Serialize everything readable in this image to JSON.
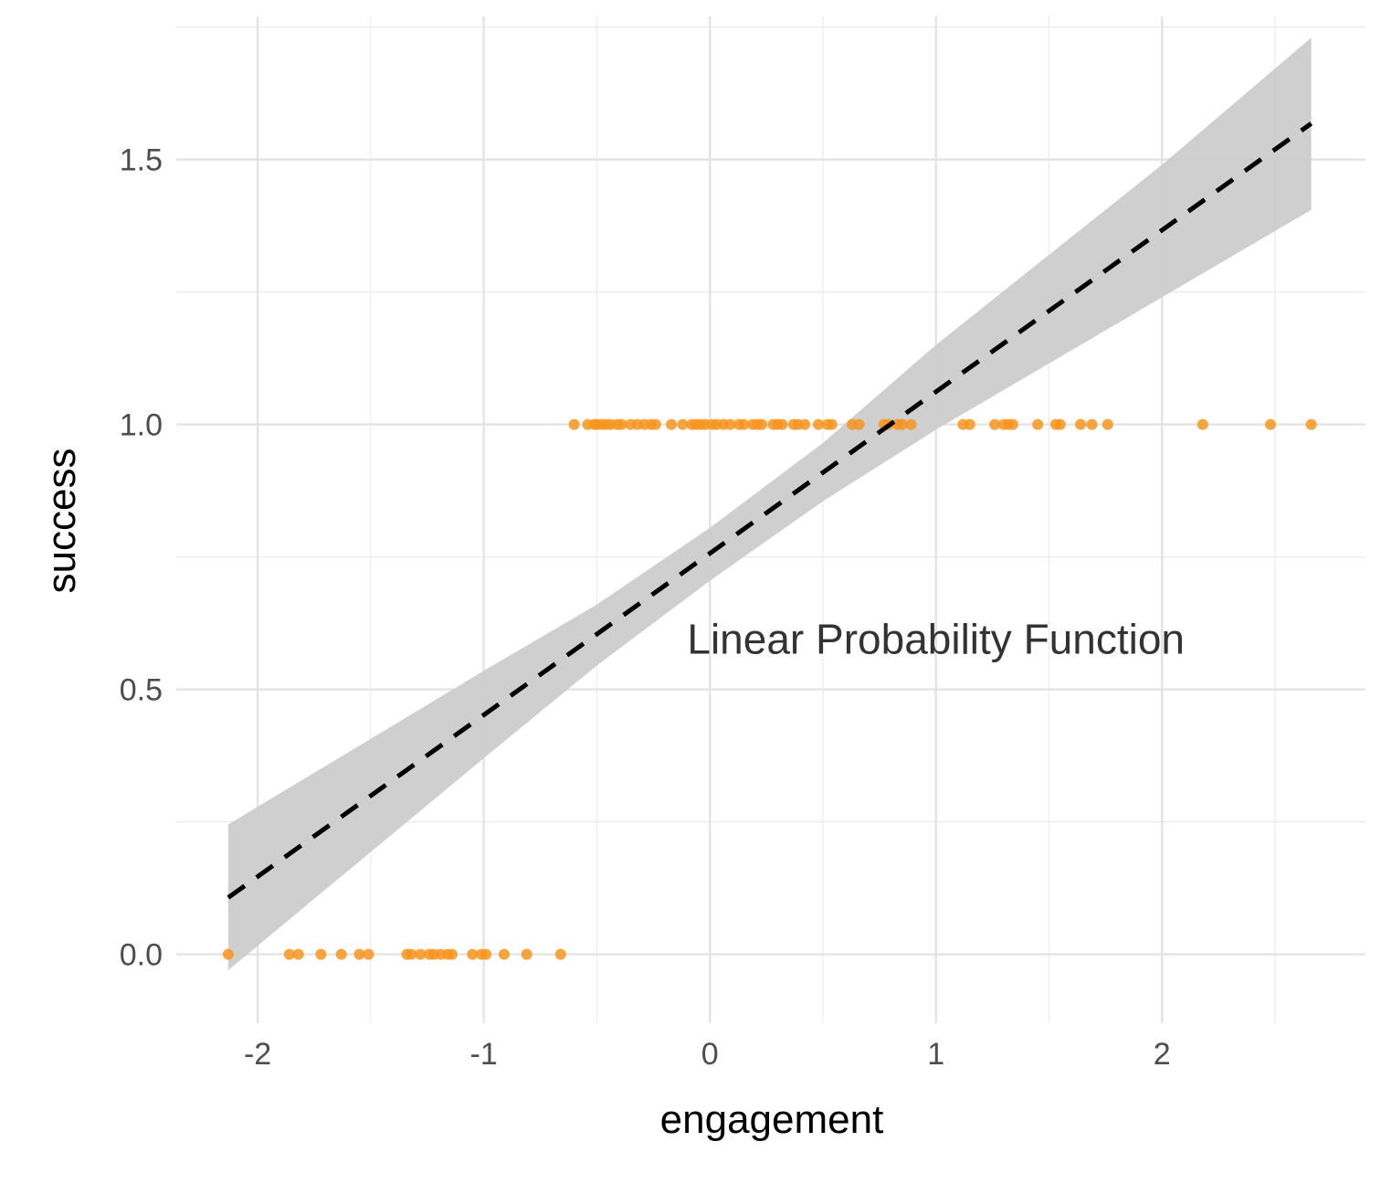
{
  "chart_data": {
    "type": "scatter",
    "xlabel": "engagement",
    "ylabel": "success",
    "xlim": [
      -2.36,
      2.9
    ],
    "ylim": [
      -0.13,
      1.77
    ],
    "x_ticks": [
      -2,
      -1,
      0,
      1,
      2
    ],
    "x_tick_labels": [
      "-2",
      "-1",
      "0",
      "1",
      "2"
    ],
    "y_ticks": [
      0.0,
      0.5,
      1.0,
      1.5
    ],
    "y_tick_labels": [
      "0.0",
      "0.5",
      "1.0",
      "1.5"
    ],
    "grid": true,
    "annotation": {
      "text": "Linear Probability Function",
      "x": 1.0,
      "y": 0.595
    },
    "points_color": "#f7941d",
    "band_color": "#cccccc",
    "line_color": "#000000",
    "fit_line": {
      "style": "dashed",
      "x": [
        -2.13,
        2.66
      ],
      "y": [
        0.107,
        1.568
      ]
    },
    "confidence_band": {
      "x": [
        -2.13,
        -1.0,
        -0.5,
        0.0,
        0.5,
        1.0,
        2.0,
        2.66
      ],
      "lower": [
        -0.03,
        0.37,
        0.545,
        0.705,
        0.855,
        0.99,
        1.24,
        1.405
      ],
      "upper": [
        0.245,
        0.535,
        0.66,
        0.805,
        0.965,
        1.15,
        1.49,
        1.73
      ]
    },
    "points": {
      "x": [
        -2.13,
        -1.86,
        -1.82,
        -1.72,
        -1.63,
        -1.55,
        -1.51,
        -1.34,
        -1.32,
        -1.28,
        -1.24,
        -1.22,
        -1.19,
        -1.16,
        -1.14,
        -1.05,
        -1.01,
        -0.99,
        -0.91,
        -0.81,
        -0.66,
        -0.6,
        -0.54,
        -0.51,
        -0.5,
        -0.48,
        -0.46,
        -0.44,
        -0.41,
        -0.39,
        -0.35,
        -0.32,
        -0.29,
        -0.26,
        -0.24,
        -0.17,
        -0.12,
        -0.08,
        -0.06,
        -0.04,
        -0.02,
        0.01,
        0.03,
        0.06,
        0.09,
        0.13,
        0.15,
        0.19,
        0.21,
        0.23,
        0.28,
        0.3,
        0.32,
        0.37,
        0.39,
        0.42,
        0.48,
        0.52,
        0.54,
        0.63,
        0.66,
        0.77,
        0.79,
        0.83,
        0.85,
        0.89,
        1.12,
        1.15,
        1.26,
        1.3,
        1.32,
        1.34,
        1.45,
        1.53,
        1.55,
        1.64,
        1.69,
        1.76,
        2.18,
        2.48,
        2.66
      ],
      "y": [
        0,
        0,
        0,
        0,
        0,
        0,
        0,
        0,
        0,
        0,
        0,
        0,
        0,
        0,
        0,
        0,
        0,
        0,
        0,
        0,
        0,
        1,
        1,
        1,
        1,
        1,
        1,
        1,
        1,
        1,
        1,
        1,
        1,
        1,
        1,
        1,
        1,
        1,
        1,
        1,
        1,
        1,
        1,
        1,
        1,
        1,
        1,
        1,
        1,
        1,
        1,
        1,
        1,
        1,
        1,
        1,
        1,
        1,
        1,
        1,
        1,
        1,
        1,
        1,
        1,
        1,
        1,
        1,
        1,
        1,
        1,
        1,
        1,
        1,
        1,
        1,
        1,
        1,
        1,
        1,
        1
      ]
    }
  }
}
